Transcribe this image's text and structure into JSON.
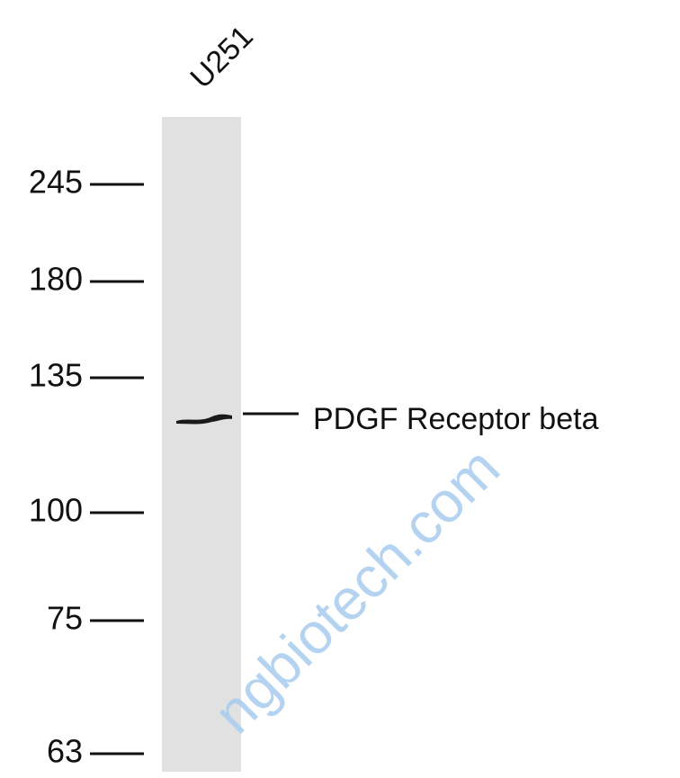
{
  "lane_labels": [
    "U251"
  ],
  "markers": [
    "245",
    "180",
    "135",
    "100",
    "75",
    "63"
  ],
  "band_label": "PDGF Receptor beta",
  "watermark": "ngbiotech.com"
}
